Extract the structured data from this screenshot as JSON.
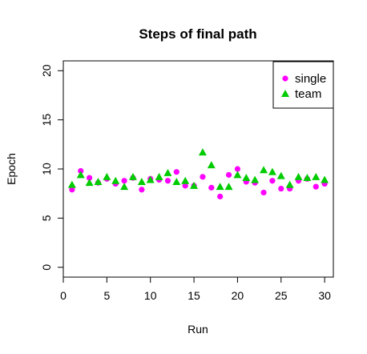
{
  "chart_data": {
    "type": "scatter",
    "title": "Steps of final path",
    "xlabel": "Run",
    "ylabel": "Epoch",
    "xlim": [
      0,
      31
    ],
    "ylim": [
      -1,
      21
    ],
    "xticks": [
      "0",
      "5",
      "10",
      "15",
      "20",
      "25",
      "30"
    ],
    "yticks": [
      "0",
      "5",
      "10",
      "15",
      "20"
    ],
    "grid": false,
    "legend_position": "top-right",
    "series": [
      {
        "name": "single",
        "marker": "circle",
        "color": "#ff00ff",
        "x": [
          1,
          2,
          3,
          4,
          5,
          6,
          7,
          8,
          9,
          10,
          11,
          12,
          13,
          14,
          15,
          16,
          17,
          18,
          19,
          20,
          21,
          22,
          23,
          24,
          25,
          26,
          27,
          28,
          29,
          30
        ],
        "y": [
          7.9,
          9.8,
          9.1,
          8.6,
          9.0,
          8.5,
          8.8,
          9.1,
          7.9,
          9.0,
          8.9,
          8.8,
          9.7,
          8.3,
          8.3,
          9.2,
          8.1,
          7.2,
          9.4,
          10.0,
          8.7,
          8.6,
          7.6,
          8.8,
          8.0,
          8.0,
          8.8,
          9.0,
          8.2,
          8.5
        ]
      },
      {
        "name": "team",
        "marker": "triangle",
        "color": "#00cc00",
        "x": [
          1,
          2,
          3,
          4,
          5,
          6,
          7,
          8,
          9,
          10,
          11,
          12,
          13,
          14,
          15,
          16,
          17,
          18,
          19,
          20,
          21,
          22,
          23,
          24,
          25,
          26,
          27,
          28,
          29,
          30
        ],
        "y": [
          8.4,
          9.4,
          8.6,
          8.7,
          9.2,
          8.8,
          8.2,
          9.2,
          8.7,
          8.9,
          9.2,
          9.6,
          8.7,
          8.8,
          8.3,
          11.7,
          10.4,
          8.2,
          8.2,
          9.4,
          9.1,
          8.9,
          9.9,
          9.7,
          9.3,
          8.4,
          9.2,
          9.1,
          9.2,
          8.9
        ]
      }
    ]
  }
}
